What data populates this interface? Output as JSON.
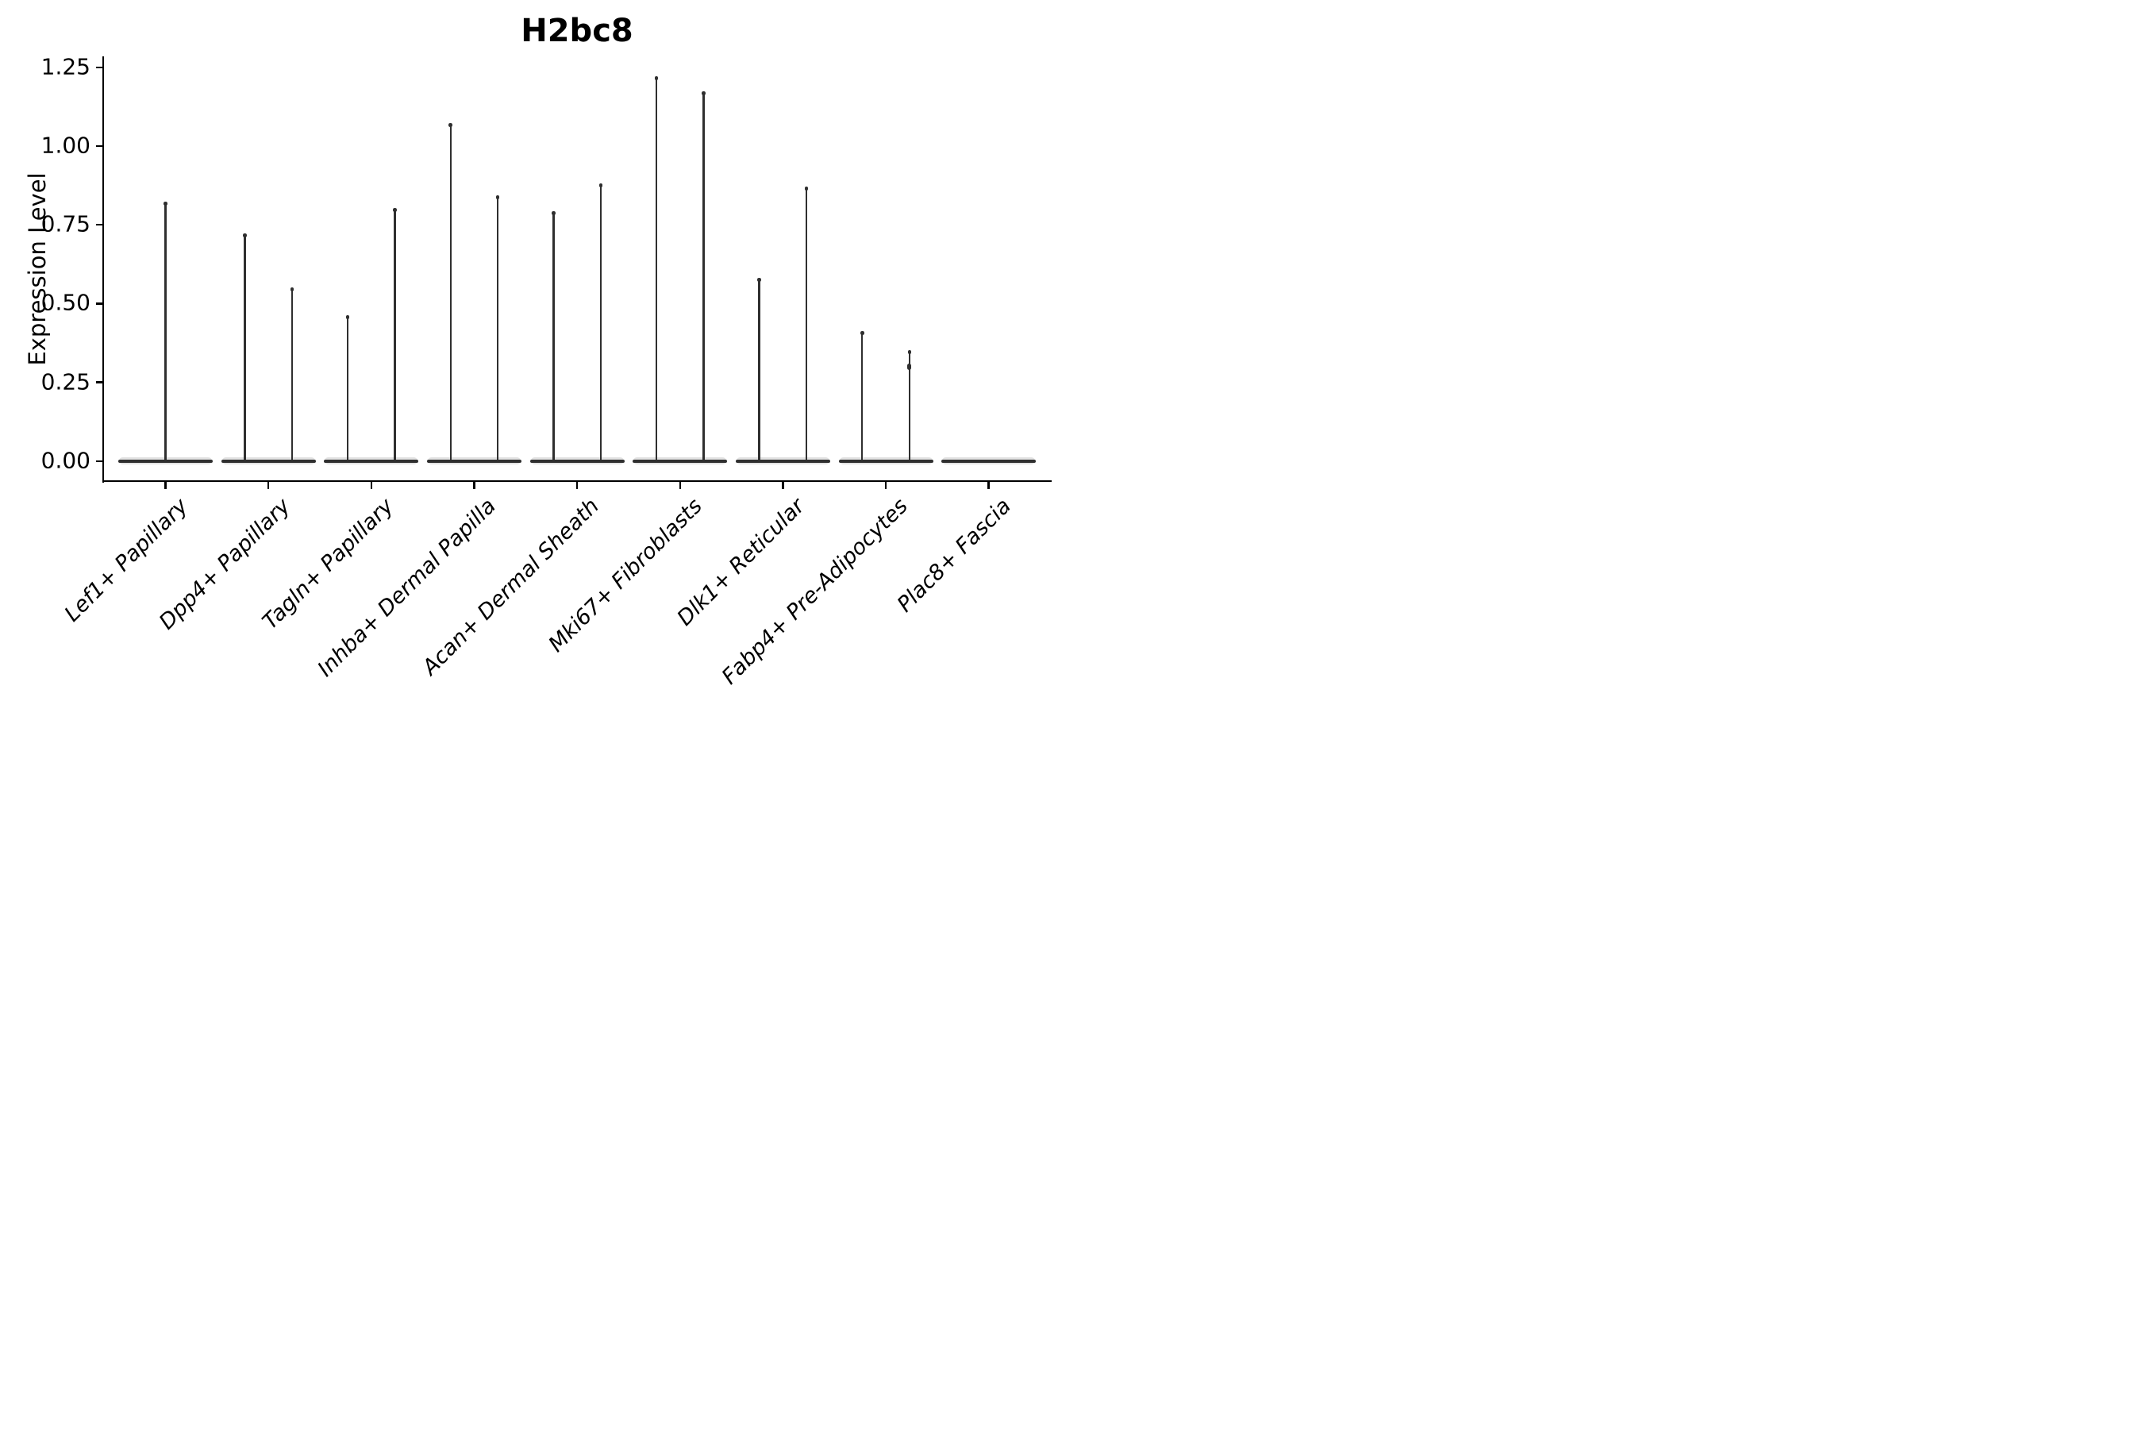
{
  "chart_data": {
    "type": "violin",
    "title": "H2bc8",
    "ylabel": "Expression Level",
    "xlabel": "",
    "ylim": [
      -0.08,
      1.33
    ],
    "grid": false,
    "legend": "none",
    "yticks": [
      {
        "label": "0.00",
        "value": 0.0
      },
      {
        "label": "0.25",
        "value": 0.25
      },
      {
        "label": "0.50",
        "value": 0.5
      },
      {
        "label": "0.75",
        "value": 0.75
      },
      {
        "label": "1.00",
        "value": 1.0
      },
      {
        "label": "1.25",
        "value": 1.25
      }
    ],
    "categories": [
      {
        "label": "Lef1+ Papillary",
        "peaks": [
          {
            "pos": 0,
            "value": 0.82
          }
        ]
      },
      {
        "label": "Dpp4+ Papillary",
        "peaks": [
          {
            "pos": -1,
            "value": 0.72
          },
          {
            "pos": 1,
            "value": 0.55
          }
        ]
      },
      {
        "label": "Tagln+ Papillary",
        "peaks": [
          {
            "pos": -1,
            "value": 0.46
          },
          {
            "pos": 1,
            "value": 0.8
          }
        ]
      },
      {
        "label": "Inhba+ Dermal Papilla",
        "peaks": [
          {
            "pos": -1,
            "value": 1.07
          },
          {
            "pos": 1,
            "value": 0.84
          }
        ]
      },
      {
        "label": "Acan+ Dermal Sheath",
        "peaks": [
          {
            "pos": -1,
            "value": 0.79
          },
          {
            "pos": 1,
            "value": 0.88
          }
        ]
      },
      {
        "label": "Mki67+ Fibroblasts",
        "peaks": [
          {
            "pos": -1,
            "value": 1.22
          },
          {
            "pos": 1,
            "value": 1.17
          }
        ]
      },
      {
        "label": "Dlk1+ Reticular",
        "peaks": [
          {
            "pos": -1,
            "value": 0.58
          },
          {
            "pos": 1,
            "value": 0.87
          }
        ]
      },
      {
        "label": "Fabp4+ Pre-Adipocytes",
        "peaks": [
          {
            "pos": -1,
            "value": 0.41
          },
          {
            "pos": 1,
            "value": 0.35,
            "knot": 0.3
          }
        ]
      },
      {
        "label": "Plac8+ Fascia",
        "peaks": []
      }
    ],
    "colors": {
      "violin": "#2f2f2f",
      "violin_fill_halo": "#e2e2e2",
      "axis": "#000000",
      "text": "#000000",
      "background": "#ffffff"
    }
  }
}
